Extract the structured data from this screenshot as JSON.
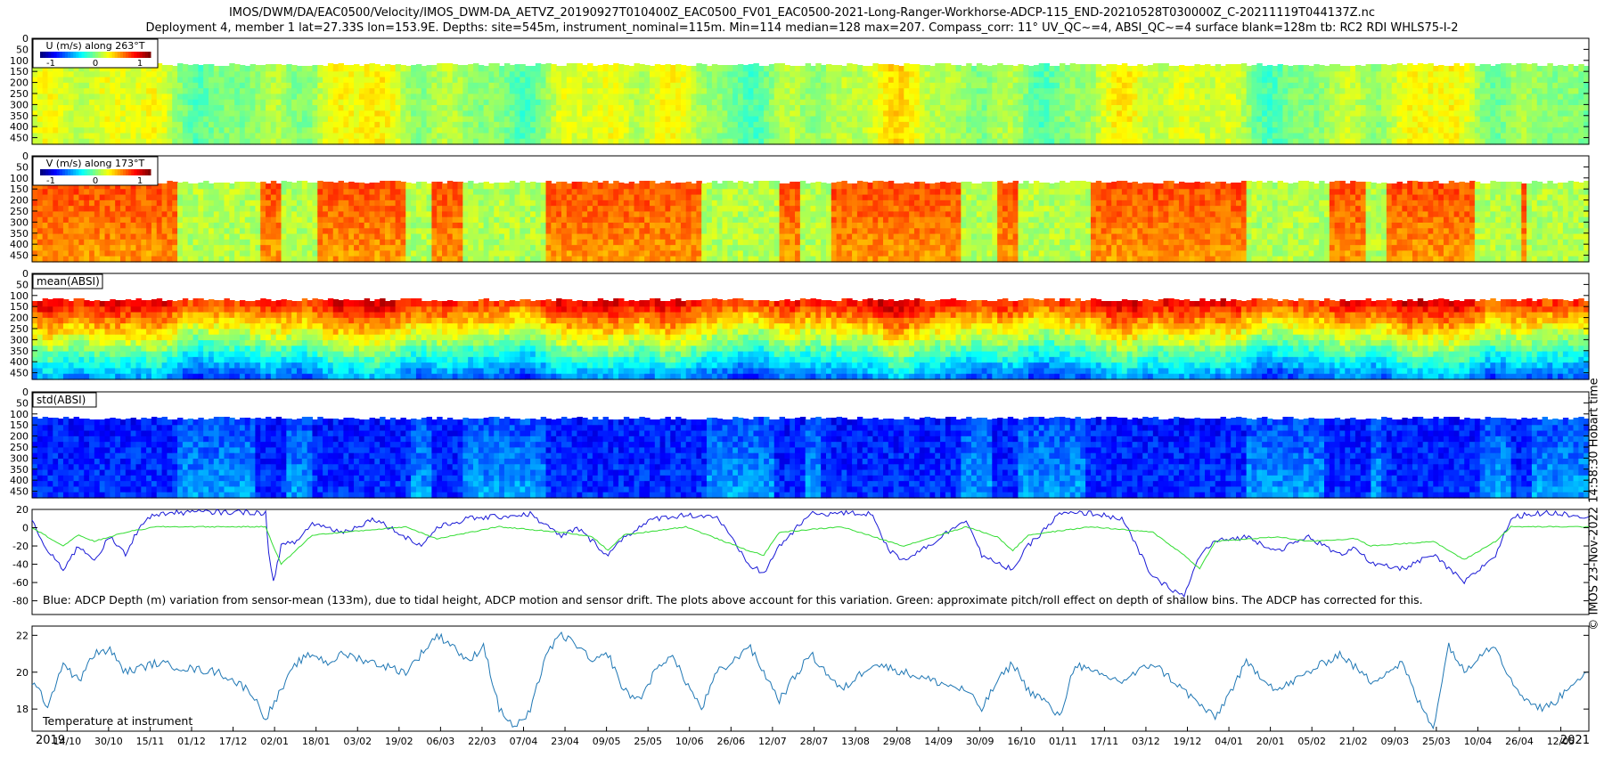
{
  "title_line1": "IMOS/DWM/DA/EAC0500/Velocity/IMOS_DWM-DA_AETVZ_20190927T010400Z_EAC0500_FV01_EAC0500-2021-Long-Ranger-Workhorse-ADCP-115_END-20210528T030000Z_C-20211119T044137Z.nc",
  "title_line2": "Deployment 4, member 1 lat=27.33S lon=153.9E. Depths: site=545m, instrument_nominal=115m. Min=114 median=128 max=207. Compass_corr: 11° UV_QC~=4, ABSI_QC~=4 surface blank=128m tb: RC2 RDI WHLS75-I-2",
  "copyright": "© IMOS 23-Nov-2022 14:58:30 Hobart time",
  "colors": {
    "blue_line": "#1a1ad6",
    "green_line": "#33dd33",
    "temp_line": "#1f77b4"
  },
  "chart_data": [
    {
      "type": "heatmap",
      "id": "u",
      "label": "U (m/s) along 263°T",
      "colorbar_ticks": [
        "-1",
        "0",
        "1"
      ],
      "colormap": "jet",
      "y_ticks": [
        "0",
        "50",
        "100",
        "150",
        "200",
        "250",
        "300",
        "350",
        "400",
        "450"
      ],
      "ylim": [
        0,
        480
      ],
      "data_top_depth": 125,
      "value_mean": 0.0,
      "value_amp": 0.18,
      "value_range": [
        -1.3,
        1.3
      ]
    },
    {
      "type": "heatmap",
      "id": "v",
      "label": "V (m/s) along 173°T",
      "colorbar_ticks": [
        "-1",
        "0",
        "1"
      ],
      "colormap": "jet",
      "y_ticks": [
        "0",
        "50",
        "100",
        "150",
        "200",
        "250",
        "300",
        "350",
        "400",
        "450"
      ],
      "ylim": [
        0,
        480
      ],
      "data_top_depth": 125,
      "value_mean": 0.45,
      "value_amp": 0.5,
      "value_range": [
        -1.3,
        1.3
      ]
    },
    {
      "type": "heatmap",
      "id": "mean_absi",
      "label": "mean(ABSI)",
      "colormap": "jet",
      "y_ticks": [
        "0",
        "50",
        "100",
        "150",
        "200",
        "250",
        "300",
        "350",
        "400",
        "450"
      ],
      "ylim": [
        0,
        480
      ],
      "data_top_depth": 125
    },
    {
      "type": "heatmap",
      "id": "std_absi",
      "label": "std(ABSI)",
      "colormap": "jet",
      "y_ticks": [
        "0",
        "50",
        "100",
        "150",
        "200",
        "250",
        "300",
        "350",
        "400",
        "450"
      ],
      "ylim": [
        0,
        480
      ],
      "data_top_depth": 125
    },
    {
      "type": "line",
      "id": "depth",
      "y_ticks": [
        "20",
        "0",
        "-20",
        "-40",
        "-60",
        "-80"
      ],
      "ylim": [
        -95,
        20
      ],
      "annotation": "Blue: ADCP Depth (m) variation from sensor-mean (133m), due to tidal height, ADCP motion and sensor drift. The plots above account for this variation. Green: approximate pitch/roll effect on depth of shallow bins. The ADCP has corrected for this.",
      "series": [
        {
          "color": "#1a1ad6",
          "x": [
            0,
            0.006,
            0.012,
            0.02,
            0.03,
            0.04,
            0.05,
            0.06,
            0.07,
            0.08,
            0.09,
            0.1,
            0.12,
            0.14,
            0.15,
            0.152,
            0.155,
            0.16,
            0.17,
            0.18,
            0.2,
            0.22,
            0.24,
            0.25,
            0.26,
            0.28,
            0.3,
            0.32,
            0.34,
            0.35,
            0.36,
            0.37,
            0.38,
            0.4,
            0.42,
            0.44,
            0.46,
            0.47,
            0.48,
            0.5,
            0.52,
            0.54,
            0.55,
            0.56,
            0.58,
            0.6,
            0.61,
            0.62,
            0.63,
            0.64,
            0.66,
            0.68,
            0.7,
            0.72,
            0.74,
            0.75,
            0.76,
            0.78,
            0.8,
            0.82,
            0.84,
            0.85,
            0.86,
            0.88,
            0.9,
            0.92,
            0.94,
            0.95,
            0.96,
            0.98,
            1.0
          ],
          "y": [
            10,
            -15,
            -30,
            -45,
            -20,
            -35,
            -10,
            -30,
            5,
            15,
            16,
            17,
            17,
            17,
            16,
            -30,
            -58,
            -20,
            -15,
            5,
            -5,
            10,
            -10,
            -20,
            0,
            10,
            12,
            15,
            -10,
            0,
            -15,
            -30,
            -10,
            10,
            14,
            12,
            -40,
            -50,
            -20,
            15,
            16,
            15,
            -25,
            -35,
            -15,
            10,
            -30,
            -40,
            -45,
            -20,
            15,
            16,
            10,
            -55,
            -75,
            -30,
            -15,
            -10,
            -25,
            -10,
            -30,
            -20,
            -40,
            -45,
            -30,
            -60,
            -30,
            10,
            15,
            16,
            12
          ]
        },
        {
          "color": "#33dd33",
          "x": [
            0,
            0.02,
            0.03,
            0.04,
            0.06,
            0.08,
            0.1,
            0.14,
            0.15,
            0.155,
            0.16,
            0.18,
            0.2,
            0.24,
            0.26,
            0.3,
            0.34,
            0.36,
            0.37,
            0.38,
            0.42,
            0.46,
            0.47,
            0.48,
            0.52,
            0.55,
            0.56,
            0.6,
            0.62,
            0.63,
            0.64,
            0.68,
            0.72,
            0.74,
            0.75,
            0.76,
            0.8,
            0.82,
            0.85,
            0.86,
            0.9,
            0.92,
            0.94,
            0.95,
            1.0
          ],
          "y": [
            0,
            -20,
            -8,
            -15,
            -5,
            1,
            1,
            1,
            1,
            -20,
            -40,
            -8,
            -5,
            1,
            -12,
            1,
            -5,
            -10,
            -25,
            -8,
            1,
            -25,
            -30,
            -5,
            1,
            -15,
            -20,
            1,
            -10,
            -25,
            -8,
            1,
            -5,
            -30,
            -45,
            -15,
            -10,
            -15,
            -12,
            -20,
            -15,
            -35,
            -15,
            1,
            1
          ]
        }
      ]
    },
    {
      "type": "line",
      "id": "temperature",
      "y_ticks": [
        "22",
        "20",
        "18"
      ],
      "ylim": [
        16.8,
        22.5
      ],
      "annotation": "Temperature at instrument",
      "x_tick_labels": [
        "14/10",
        "30/10",
        "15/11",
        "01/12",
        "17/12",
        "02/01",
        "18/01",
        "03/02",
        "19/02",
        "06/03",
        "22/03",
        "07/04",
        "23/04",
        "09/05",
        "25/05",
        "10/06",
        "26/06",
        "12/07",
        "28/07",
        "13/08",
        "29/08",
        "14/09",
        "30/09",
        "16/10",
        "01/11",
        "17/11",
        "03/12",
        "19/12",
        "04/01",
        "20/01",
        "05/02",
        "21/02",
        "09/03",
        "25/03",
        "10/04",
        "26/04",
        "12/05"
      ],
      "year_labels": [
        "2019",
        "2021"
      ],
      "series": [
        {
          "color": "#1f77b4",
          "x": [
            0,
            0.01,
            0.02,
            0.03,
            0.04,
            0.05,
            0.06,
            0.08,
            0.1,
            0.12,
            0.14,
            0.15,
            0.16,
            0.17,
            0.18,
            0.19,
            0.2,
            0.22,
            0.24,
            0.26,
            0.27,
            0.28,
            0.29,
            0.3,
            0.31,
            0.32,
            0.33,
            0.34,
            0.35,
            0.36,
            0.37,
            0.38,
            0.39,
            0.4,
            0.41,
            0.42,
            0.43,
            0.44,
            0.45,
            0.46,
            0.47,
            0.48,
            0.5,
            0.52,
            0.54,
            0.56,
            0.58,
            0.6,
            0.61,
            0.62,
            0.63,
            0.64,
            0.65,
            0.66,
            0.67,
            0.68,
            0.7,
            0.72,
            0.74,
            0.76,
            0.78,
            0.8,
            0.82,
            0.84,
            0.86,
            0.88,
            0.89,
            0.9,
            0.91,
            0.92,
            0.93,
            0.94,
            0.95,
            0.96,
            0.97,
            0.98,
            0.99,
            1.0
          ],
          "y": [
            19.5,
            18.2,
            20.5,
            19.5,
            21,
            21.2,
            20,
            20.5,
            20.2,
            20,
            19,
            17.5,
            19,
            20.5,
            21,
            20.5,
            21,
            20.5,
            20,
            22,
            21.5,
            20.5,
            21.5,
            18,
            17,
            17.8,
            21,
            22,
            21.5,
            20.5,
            21,
            19,
            18.5,
            20,
            21,
            19.5,
            18,
            20,
            20.5,
            21.5,
            20,
            18.5,
            21,
            19,
            20.5,
            20,
            19.5,
            19,
            18,
            19.5,
            20.5,
            19,
            18.5,
            17.5,
            20.5,
            20,
            19.5,
            20.5,
            19,
            17.5,
            20.5,
            19,
            20,
            21,
            19.5,
            20.5,
            18.5,
            17,
            21.5,
            20,
            21,
            21.5,
            19.5,
            18.5,
            18,
            18.5,
            19.5,
            20
          ]
        }
      ]
    }
  ]
}
